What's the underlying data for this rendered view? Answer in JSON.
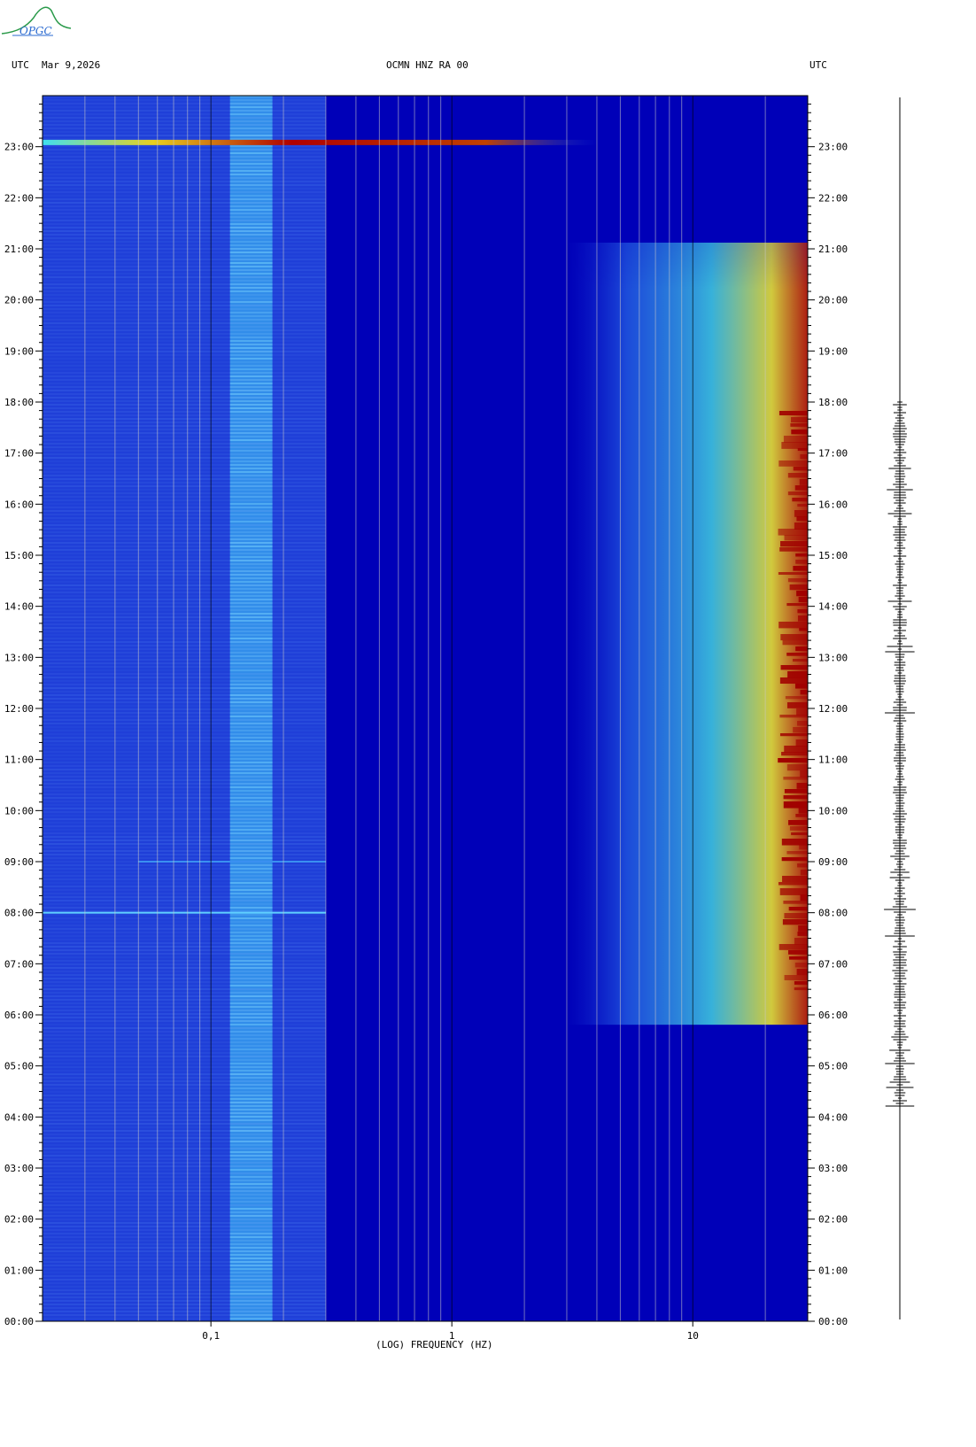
{
  "header": {
    "left_tz": "UTC",
    "date": "Mar 9,2026",
    "station": "OCMN HNZ RA 00",
    "right_tz": "UTC",
    "logo_text": "OPGC"
  },
  "colors": {
    "background_blue": "#0000b8",
    "low_band_blue": "#1f3fd8",
    "band_cyan": "#3aa8f0",
    "hot_yellow": "#f0e020",
    "hot_red": "#a00000"
  },
  "chart_data": {
    "type": "heatmap",
    "title": "OCMN HNZ RA 00",
    "xlabel": "(LOG) FREQUENCY (HZ)",
    "x_scale": "log",
    "xlim": [
      0.02,
      30
    ],
    "x_ticks": [
      {
        "value": 0.1,
        "label": "0,1"
      },
      {
        "value": 1,
        "label": "1"
      },
      {
        "value": 10,
        "label": "10"
      }
    ],
    "ylabel": "UTC",
    "ylim": [
      "00:00",
      "24:00"
    ],
    "y_ticks": [
      "00:00",
      "01:00",
      "02:00",
      "03:00",
      "04:00",
      "05:00",
      "06:00",
      "07:00",
      "08:00",
      "09:00",
      "10:00",
      "11:00",
      "12:00",
      "13:00",
      "14:00",
      "15:00",
      "16:00",
      "17:00",
      "18:00",
      "19:00",
      "20:00",
      "21:00",
      "22:00",
      "23:00"
    ],
    "events": [
      {
        "time": "23:05",
        "freq_min_hz": 0.02,
        "freq_max_hz": 4,
        "intensity": "high"
      },
      {
        "time": "08:00",
        "freq_min_hz": 0.02,
        "freq_max_hz": 0.3,
        "intensity": "medium"
      },
      {
        "time": "09:00",
        "freq_min_hz": 0.05,
        "freq_max_hz": 0.3,
        "intensity": "low"
      }
    ],
    "high_freq_activity": {
      "time_start": "06:30",
      "time_end": "18:00",
      "freq_min_hz": 8,
      "freq_max_hz": 30
    },
    "trace_activity": {
      "time_start": "04:10",
      "time_end": "18:00"
    }
  }
}
